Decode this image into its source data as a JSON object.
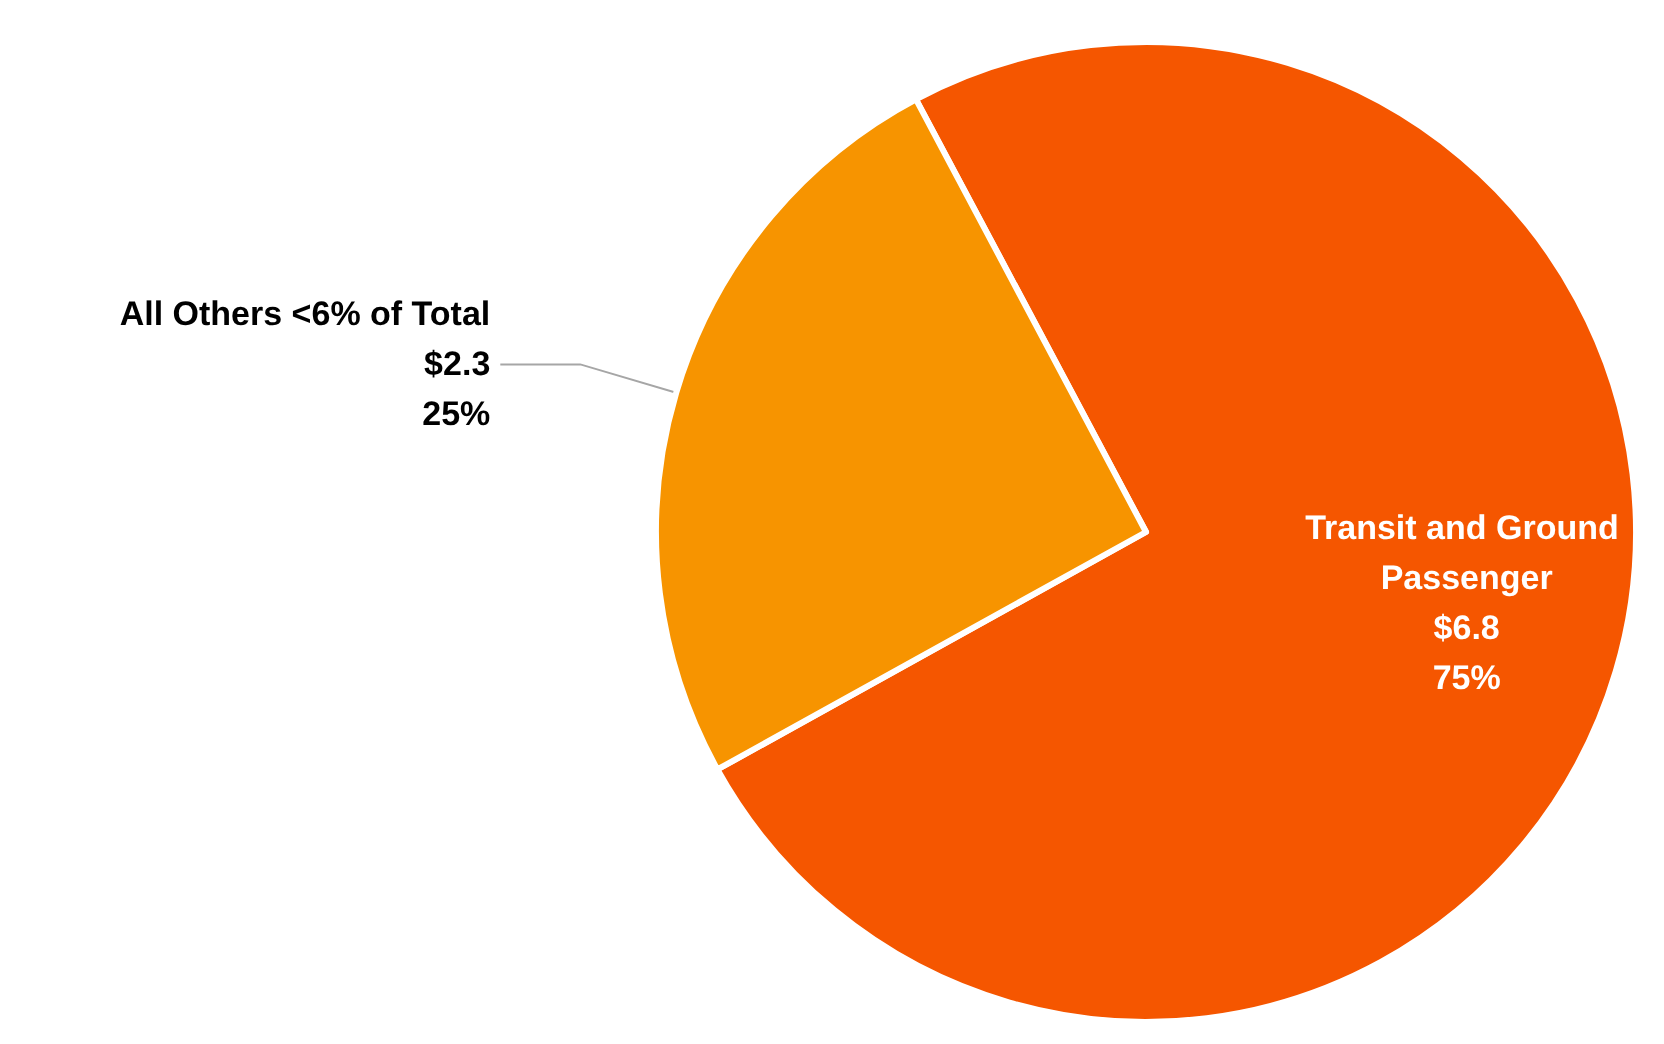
{
  "chart_data": {
    "type": "pie",
    "categories": [
      "Transit and Ground Passenger",
      "All Others <6% of Total"
    ],
    "values": [
      6.8,
      2.3
    ],
    "colors": [
      "#f55600",
      "#f79400"
    ],
    "value_labels": [
      "$6.8\n75%",
      "$2.3\n25%"
    ],
    "legend": false
  }
}
